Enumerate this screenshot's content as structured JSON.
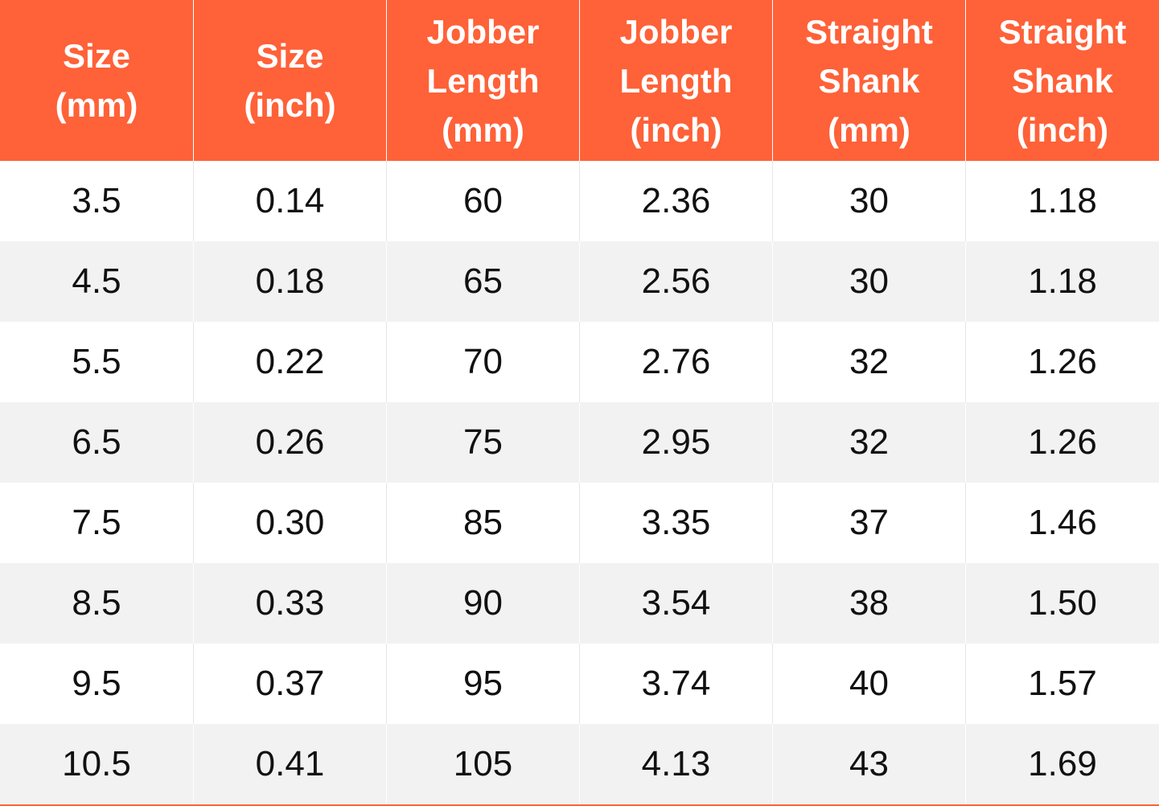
{
  "table": {
    "header": [
      [
        "Size",
        "(mm)"
      ],
      [
        "Size",
        "(inch)"
      ],
      [
        "Jobber",
        "Length",
        "(mm)"
      ],
      [
        "Jobber",
        "Length",
        "(inch)"
      ],
      [
        "Straight",
        "Shank",
        "(mm)"
      ],
      [
        "Straight",
        "Shank",
        "(inch)"
      ]
    ],
    "rows": [
      [
        "3.5",
        "0.14",
        "60",
        "2.36",
        "30",
        "1.18"
      ],
      [
        "4.5",
        "0.18",
        "65",
        "2.56",
        "30",
        "1.18"
      ],
      [
        "5.5",
        "0.22",
        "70",
        "2.76",
        "32",
        "1.26"
      ],
      [
        "6.5",
        "0.26",
        "75",
        "2.95",
        "32",
        "1.26"
      ],
      [
        "7.5",
        "0.30",
        "85",
        "3.35",
        "37",
        "1.46"
      ],
      [
        "8.5",
        "0.33",
        "90",
        "3.54",
        "38",
        "1.50"
      ],
      [
        "9.5",
        "0.37",
        "95",
        "3.74",
        "40",
        "1.57"
      ],
      [
        "10.5",
        "0.41",
        "105",
        "4.13",
        "43",
        "1.69"
      ]
    ]
  }
}
